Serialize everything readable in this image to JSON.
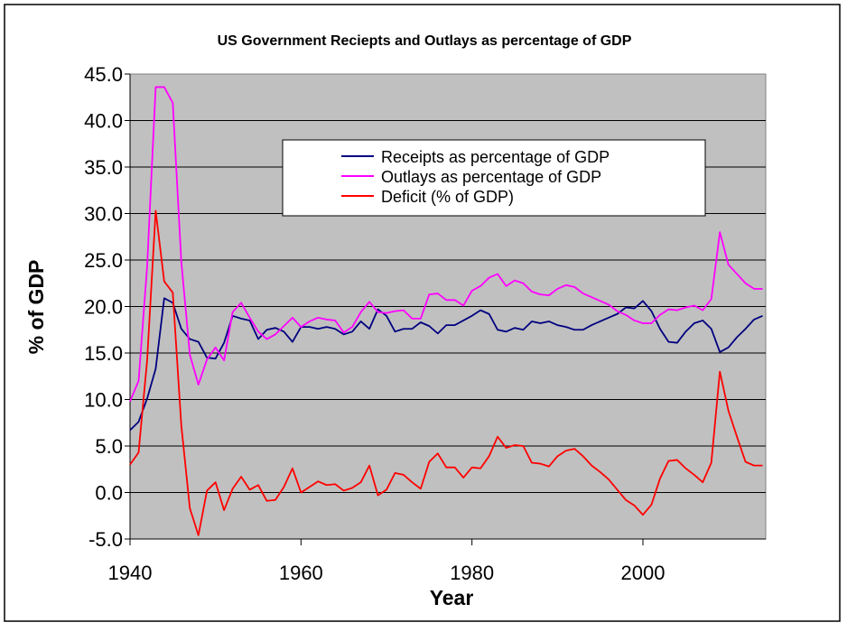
{
  "chart_data": {
    "type": "line",
    "title": "US Government Reciepts and Outlays as percentage of GDP",
    "xlabel": "Year",
    "ylabel": "% of GDP",
    "xlim": [
      1940,
      2014
    ],
    "ylim": [
      -5,
      45
    ],
    "xticks": [
      "1940",
      "1960",
      "1980",
      "2000"
    ],
    "yticks": [
      "45.0",
      "40.0",
      "35.0",
      "30.0",
      "25.0",
      "20.0",
      "15.0",
      "10.0",
      "5.0",
      "0.0",
      "-5.0"
    ],
    "grid": true,
    "legend_placement": "top-center",
    "plot_background": "#c0c0c0",
    "x_start": 1940,
    "series": [
      {
        "name": "Receipts as percentage of GDP",
        "color": "#000080",
        "values": [
          6.7,
          7.6,
          10.1,
          13.3,
          20.9,
          20.4,
          17.6,
          16.5,
          16.2,
          14.5,
          14.4,
          16.1,
          19.0,
          18.7,
          18.5,
          16.5,
          17.5,
          17.7,
          17.3,
          16.2,
          17.8,
          17.8,
          17.6,
          17.8,
          17.6,
          17.0,
          17.3,
          18.4,
          17.6,
          19.7,
          19.0,
          17.3,
          17.6,
          17.6,
          18.3,
          17.9,
          17.1,
          18.0,
          18.0,
          18.5,
          19.0,
          19.6,
          19.2,
          17.5,
          17.3,
          17.7,
          17.5,
          18.4,
          18.2,
          18.4,
          18.0,
          17.8,
          17.5,
          17.5,
          18.0,
          18.4,
          18.8,
          19.2,
          19.9,
          19.8,
          20.6,
          19.5,
          17.6,
          16.2,
          16.1,
          17.3,
          18.2,
          18.5,
          17.6,
          15.1,
          15.6,
          16.7,
          17.6,
          18.6,
          19.0
        ]
      },
      {
        "name": "Outlays as percentage of GDP",
        "color": "#ff00ff",
        "values": [
          9.8,
          12.0,
          24.3,
          43.6,
          43.6,
          41.9,
          24.8,
          14.8,
          11.6,
          14.3,
          15.6,
          14.2,
          19.4,
          20.4,
          18.8,
          17.3,
          16.5,
          17.0,
          17.9,
          18.8,
          17.8,
          18.4,
          18.8,
          18.6,
          18.5,
          17.2,
          17.8,
          19.4,
          20.5,
          19.4,
          19.3,
          19.5,
          19.6,
          18.7,
          18.7,
          21.3,
          21.4,
          20.7,
          20.7,
          20.1,
          21.7,
          22.2,
          23.1,
          23.5,
          22.2,
          22.8,
          22.5,
          21.6,
          21.3,
          21.2,
          21.9,
          22.3,
          22.1,
          21.4,
          21.0,
          20.6,
          20.2,
          19.5,
          19.1,
          18.5,
          18.2,
          18.2,
          19.1,
          19.7,
          19.6,
          19.9,
          20.1,
          19.6,
          20.8,
          28.0,
          24.5,
          23.5,
          22.5,
          21.9,
          21.9
        ]
      },
      {
        "name": "Deficit (% of GDP)",
        "color": "#ff0000",
        "values": [
          3.0,
          4.3,
          14.2,
          30.3,
          22.7,
          21.5,
          7.2,
          -1.7,
          -4.6,
          0.2,
          1.1,
          -1.9,
          0.4,
          1.7,
          0.3,
          0.8,
          -0.9,
          -0.8,
          0.6,
          2.6,
          0.0,
          0.6,
          1.2,
          0.8,
          0.9,
          0.2,
          0.5,
          1.1,
          2.9,
          -0.3,
          0.3,
          2.1,
          1.9,
          1.1,
          0.4,
          3.3,
          4.2,
          2.7,
          2.7,
          1.6,
          2.7,
          2.6,
          3.9,
          6.0,
          4.8,
          5.1,
          5.0,
          3.2,
          3.1,
          2.8,
          3.9,
          4.5,
          4.7,
          3.9,
          2.9,
          2.2,
          1.4,
          0.3,
          -0.8,
          -1.4,
          -2.4,
          -1.3,
          1.5,
          3.4,
          3.5,
          2.6,
          1.9,
          1.1,
          3.2,
          13.0,
          8.8,
          6.0,
          3.3,
          2.9,
          2.9
        ]
      }
    ]
  }
}
